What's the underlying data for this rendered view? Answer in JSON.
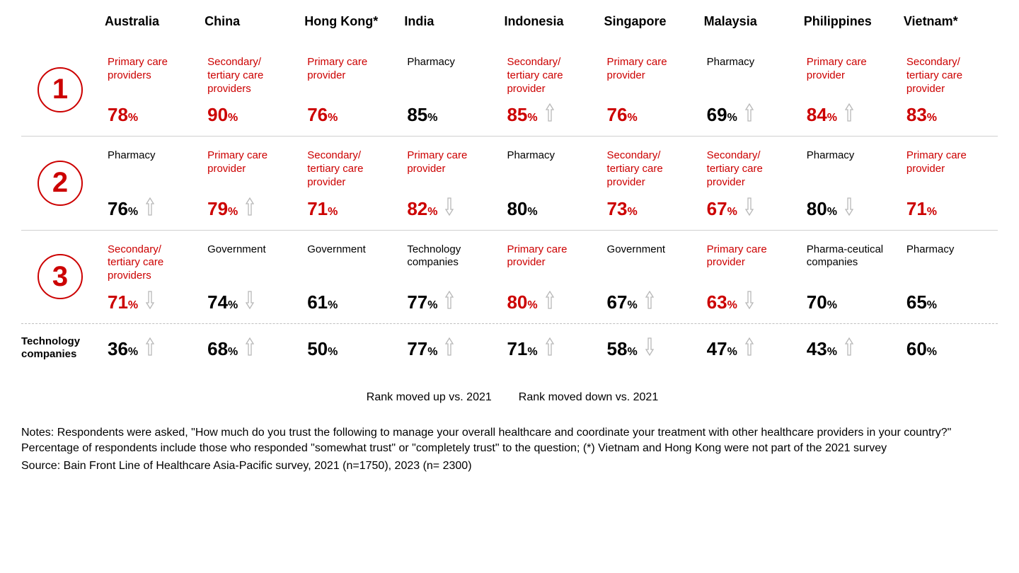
{
  "colors": {
    "accent": "#cc0000",
    "text": "#000000",
    "border": "#d0d0d0",
    "arrow": "#b8b8b8"
  },
  "countries": [
    "Australia",
    "China",
    "Hong Kong*",
    "India",
    "Indonesia",
    "Singapore",
    "Malaysia",
    "Philippines",
    "Vietnam*"
  ],
  "ranks": [
    "1",
    "2",
    "3"
  ],
  "rows": [
    [
      {
        "entity": "Primary care providers",
        "pct": 78,
        "highlight": true,
        "arrow": null
      },
      {
        "entity": "Secondary/ tertiary care providers",
        "pct": 90,
        "highlight": true,
        "arrow": null
      },
      {
        "entity": "Primary care provider",
        "pct": 76,
        "highlight": true,
        "arrow": null
      },
      {
        "entity": "Pharmacy",
        "pct": 85,
        "highlight": false,
        "arrow": null
      },
      {
        "entity": "Secondary/ tertiary care provider",
        "pct": 85,
        "highlight": true,
        "arrow": "up"
      },
      {
        "entity": "Primary care provider",
        "pct": 76,
        "highlight": true,
        "arrow": null
      },
      {
        "entity": "Pharmacy",
        "pct": 69,
        "highlight": false,
        "arrow": "up"
      },
      {
        "entity": "Primary care provider",
        "pct": 84,
        "highlight": true,
        "arrow": "up"
      },
      {
        "entity": "Secondary/ tertiary care provider",
        "pct": 83,
        "highlight": true,
        "arrow": null
      }
    ],
    [
      {
        "entity": "Pharmacy",
        "pct": 76,
        "highlight": false,
        "arrow": "up"
      },
      {
        "entity": "Primary care provider",
        "pct": 79,
        "highlight": true,
        "arrow": "up"
      },
      {
        "entity": "Secondary/ tertiary care provider",
        "pct": 71,
        "highlight": true,
        "arrow": null
      },
      {
        "entity": "Primary care provider",
        "pct": 82,
        "highlight": true,
        "arrow": "down"
      },
      {
        "entity": "Pharmacy",
        "pct": 80,
        "highlight": false,
        "arrow": null
      },
      {
        "entity": "Secondary/ tertiary care provider",
        "pct": 73,
        "highlight": true,
        "arrow": null
      },
      {
        "entity": "Secondary/ tertiary care provider",
        "pct": 67,
        "highlight": true,
        "arrow": "down"
      },
      {
        "entity": "Pharmacy",
        "pct": 80,
        "highlight": false,
        "arrow": "down"
      },
      {
        "entity": "Primary care provider",
        "pct": 71,
        "highlight": true,
        "arrow": null
      }
    ],
    [
      {
        "entity": "Secondary/ tertiary care providers",
        "pct": 71,
        "highlight": true,
        "arrow": "down"
      },
      {
        "entity": "Government",
        "pct": 74,
        "highlight": false,
        "arrow": "down"
      },
      {
        "entity": "Government",
        "pct": 61,
        "highlight": false,
        "arrow": null
      },
      {
        "entity": "Technology companies",
        "pct": 77,
        "highlight": false,
        "arrow": "up"
      },
      {
        "entity": "Primary care provider",
        "pct": 80,
        "highlight": true,
        "arrow": "up"
      },
      {
        "entity": "Government",
        "pct": 67,
        "highlight": false,
        "arrow": "up"
      },
      {
        "entity": "Primary care provider",
        "pct": 63,
        "highlight": true,
        "arrow": "down"
      },
      {
        "entity": "Pharma-ceutical companies",
        "pct": 70,
        "highlight": false,
        "arrow": null
      },
      {
        "entity": "Pharmacy",
        "pct": 65,
        "highlight": false,
        "arrow": null
      }
    ]
  ],
  "tech_label": "Technology companies",
  "tech_row": [
    {
      "pct": 36,
      "arrow": "up"
    },
    {
      "pct": 68,
      "arrow": "up"
    },
    {
      "pct": 50,
      "arrow": null
    },
    {
      "pct": 77,
      "arrow": "up"
    },
    {
      "pct": 71,
      "arrow": "up"
    },
    {
      "pct": 58,
      "arrow": "down"
    },
    {
      "pct": 47,
      "arrow": "up"
    },
    {
      "pct": 43,
      "arrow": "up"
    },
    {
      "pct": 60,
      "arrow": null
    }
  ],
  "legend": {
    "up": "Rank moved up vs. 2021",
    "down": "Rank moved down vs. 2021"
  },
  "notes": "Notes: Respondents were asked, \"How much do you trust the following to manage your overall healthcare and coordinate your treatment with other healthcare providers in your country?\" Percentage of respondents include those who responded \"somewhat trust\" or \"completely trust\" to the question; (*) Vietnam and Hong Kong were not part of the 2021 survey",
  "source": "Source: Bain Front Line of Healthcare Asia-Pacific survey, 2021 (n=1750), 2023 (n= 2300)"
}
